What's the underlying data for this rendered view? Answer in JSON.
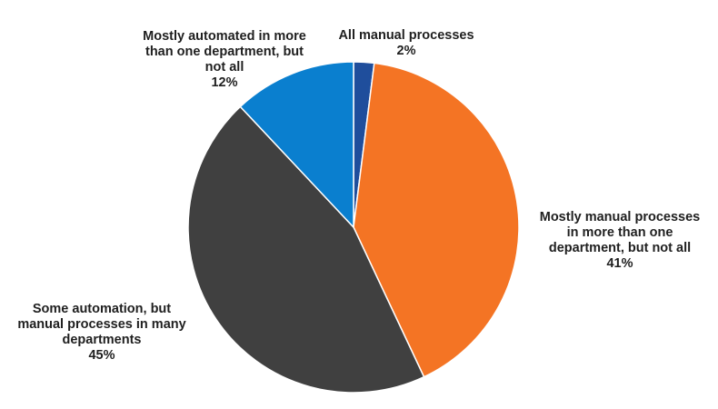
{
  "chart_data": {
    "type": "pie",
    "start_angle_deg": 0,
    "direction": "clockwise",
    "slices": [
      {
        "name": "All manual processes",
        "label_lines": [
          "All manual processes"
        ],
        "value": 2,
        "pct_label": "2%",
        "color": "#1f4e9c"
      },
      {
        "name": "Mostly manual processes in more than one department, but not all",
        "label_lines": [
          "Mostly manual processes",
          "in more than one",
          "department, but not all"
        ],
        "value": 41,
        "pct_label": "41%",
        "color": "#f47424"
      },
      {
        "name": "Some automation, but manual processes in many departments",
        "label_lines": [
          "Some automation, but",
          "manual processes in many",
          "departments"
        ],
        "value": 45,
        "pct_label": "45%",
        "color": "#404040"
      },
      {
        "name": "Mostly automated in more than one department, but not all",
        "label_lines": [
          "Mostly automated in more",
          "than one department, but",
          "not all"
        ],
        "value": 12,
        "pct_label": "12%",
        "color": "#0a7fcf"
      }
    ]
  }
}
